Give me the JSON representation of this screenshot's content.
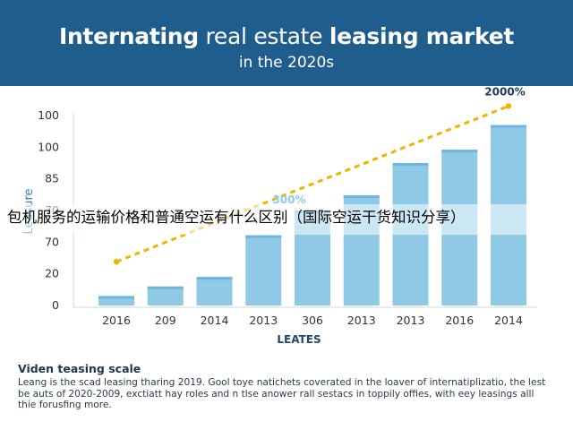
{
  "header": {
    "title_bold_1": "Internating",
    "title_regular": " real estate ",
    "title_bold_2": "leasing market",
    "subtitle": "in the 2020s"
  },
  "overlay_caption": "包机服务的运输价格和普通空运有什么区别（国际空运干货知识分享）",
  "footer": {
    "title": "Viden teasing scale",
    "text": "Leang is the scad leasing tharing 2019. Gool toye natichets coverated in the loaver of internatiplizatio, the lest be auts of 2020-2009, exctiatt hay roles and n tlse anower rall sestacs in toppily offies, with eey leasings alll thie forusfing more."
  },
  "colors": {
    "header_bg": "#1f5d8c",
    "bar": "#8fc9e6",
    "trend": "#f0b400",
    "axis_text": "#333333",
    "xlabel": "#23476b"
  },
  "chart_data": {
    "type": "bar",
    "categories": [
      "2016",
      "209",
      "2014",
      "2013",
      "306",
      "2013",
      "2013",
      "2016",
      "2014"
    ],
    "values": [
      5,
      10,
      15,
      37,
      50,
      58,
      75,
      82,
      95
    ],
    "y_tick_labels": [
      "0",
      "20",
      "70",
      "70",
      "85",
      "100",
      "100"
    ],
    "ylim": [
      0,
      100
    ],
    "xlabel": "LEATES",
    "ylabel": "Leasure",
    "trend_line": {
      "style": "dashed",
      "start_value": 23,
      "end_value": 105
    },
    "annotations": [
      {
        "text": "300%",
        "category_index": 4
      },
      {
        "text": "2000%",
        "category_index": 8
      }
    ],
    "grid": false,
    "legend": "none"
  }
}
